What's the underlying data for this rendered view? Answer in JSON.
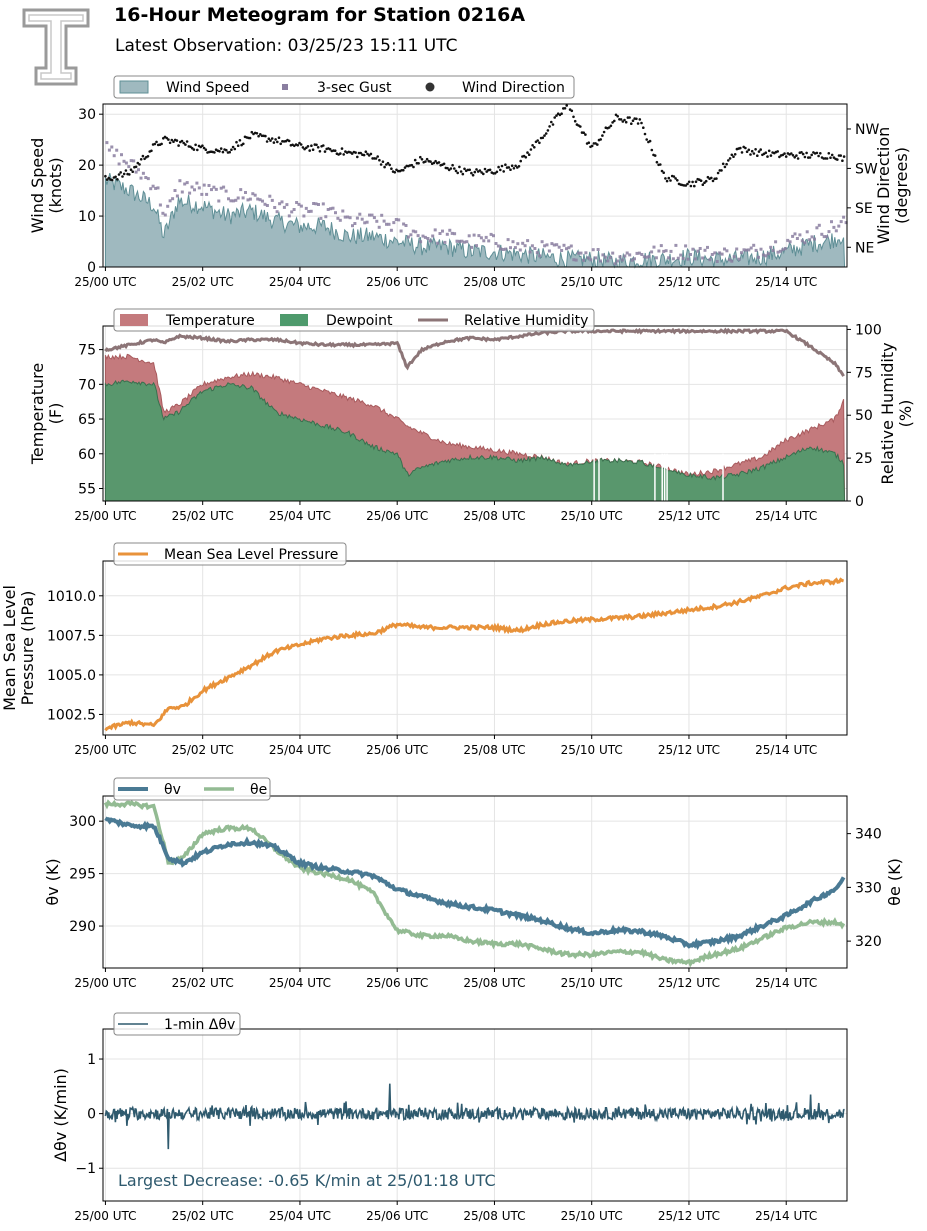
{
  "header": {
    "title": "16-Hour Meteogram for Station 0216A",
    "subtitle": "Latest Observation: 03/25/23 15:11 UTC",
    "logo_text": "T"
  },
  "colors": {
    "wind_fill": "#9fb9bf",
    "wind_line": "#5f8f96",
    "gust": "#8a7ea0",
    "direction": "#111111",
    "temperature": "#c47a7d",
    "dewpoint": "#4e9a6c",
    "rh": "#8c7577",
    "pressure": "#e8923a",
    "theta_v": "#4a7a94",
    "theta_e": "#93bb93",
    "dtheta": "#2f5a6e",
    "annotation": "#2f5a6e"
  },
  "chart_data": [
    {
      "id": "wind",
      "type": "area",
      "xlabel": "",
      "ylabel": "Wind Speed\n(knots)",
      "ylabel_right": "Wind Direction\n(degrees)",
      "ylim": [
        0,
        32
      ],
      "yticks": [
        0,
        10,
        20,
        30
      ],
      "ylim_right": [
        0,
        372
      ],
      "yticks_right": [
        45,
        135,
        225,
        315
      ],
      "yticklabels_right": [
        "NE",
        "SE",
        "SW",
        "NW"
      ],
      "x_hours": [
        0,
        0.5,
        1,
        1.2,
        1.5,
        2,
        2.5,
        3,
        3.5,
        4,
        4.5,
        5,
        5.5,
        6,
        6.5,
        7,
        7.5,
        8,
        8.5,
        9,
        9.5,
        10,
        10.5,
        11,
        11.5,
        12,
        12.5,
        13,
        13.5,
        14,
        14.5,
        15,
        15.2
      ],
      "series": [
        {
          "name": "Wind Speed",
          "kind": "area",
          "values": [
            17,
            15,
            12,
            6,
            13,
            12,
            10,
            11,
            9,
            8,
            8,
            6,
            6,
            5,
            4,
            4,
            3,
            3,
            2.5,
            2,
            1.5,
            1.5,
            1,
            1.5,
            1.5,
            2,
            1.5,
            1.5,
            2,
            3,
            4.5,
            5.5,
            6.5
          ]
        },
        {
          "name": "3-sec Gust",
          "kind": "points",
          "values": [
            23,
            20,
            16,
            10,
            16,
            15,
            14,
            14,
            12,
            11,
            11,
            9,
            9,
            8,
            6,
            6,
            5,
            5,
            4,
            3.5,
            3,
            2.5,
            2,
            2.5,
            3,
            3,
            2.5,
            2.5,
            3.5,
            5,
            6.5,
            8,
            9
          ]
        },
        {
          "name": "Wind Direction",
          "kind": "points",
          "values": [
            200,
            215,
            275,
            290,
            285,
            270,
            265,
            300,
            290,
            275,
            270,
            260,
            255,
            215,
            245,
            230,
            215,
            220,
            235,
            300,
            370,
            270,
            340,
            330,
            205,
            190,
            200,
            270,
            260,
            255,
            255,
            255,
            245
          ]
        }
      ],
      "legend": [
        "Wind Speed",
        "3-sec Gust",
        "Wind Direction"
      ]
    },
    {
      "id": "thermo",
      "type": "area",
      "ylabel": "Temperature\n(F)",
      "ylabel_right": "Relative Humidity\n(%)",
      "ylim": [
        53.2,
        78.4
      ],
      "yticks": [
        55,
        60,
        65,
        70,
        75
      ],
      "ylim_right": [
        0,
        102
      ],
      "yticks_right": [
        0,
        25,
        50,
        75,
        100
      ],
      "x_hours": [
        0,
        0.5,
        1,
        1.2,
        1.5,
        2,
        2.5,
        3,
        3.5,
        4,
        4.5,
        5,
        5.5,
        6,
        6.2,
        6.5,
        7,
        7.5,
        8,
        8.5,
        9,
        9.5,
        10,
        10.5,
        11,
        11.5,
        12,
        12.5,
        13,
        13.5,
        14,
        14.5,
        15,
        15.2
      ],
      "series": [
        {
          "name": "Temperature",
          "kind": "area",
          "values": [
            74,
            74,
            73,
            66,
            67,
            70,
            71,
            71.5,
            71,
            70,
            69,
            68,
            67,
            65,
            64,
            63,
            61.5,
            61,
            60.5,
            60,
            59.5,
            58.5,
            59,
            59,
            58.8,
            58,
            57,
            57.5,
            58.5,
            59.5,
            62,
            63.5,
            65,
            68
          ]
        },
        {
          "name": "Dewpoint",
          "kind": "area",
          "values": [
            70,
            70.5,
            70,
            65,
            66,
            69,
            70,
            69.5,
            66,
            65,
            64,
            63,
            61,
            60,
            57,
            58,
            59,
            59.5,
            59.5,
            59,
            59.5,
            58.5,
            59,
            59.5,
            58.8,
            58,
            57,
            56.5,
            57,
            58,
            59.5,
            61,
            60,
            58.5
          ]
        },
        {
          "name": "Relative Humidity",
          "kind": "line",
          "values": [
            88,
            91,
            94,
            92,
            96,
            95,
            93,
            94,
            94,
            92,
            91,
            91,
            91,
            92,
            78,
            88,
            93,
            95,
            94,
            96,
            98,
            99,
            99,
            99,
            99,
            99,
            99,
            99,
            99,
            99,
            99,
            90,
            80,
            72
          ]
        }
      ],
      "legend": [
        "Temperature",
        "Dewpoint",
        "Relative Humidity"
      ]
    },
    {
      "id": "pressure",
      "type": "line",
      "ylabel": "Mean Sea Level\nPressure (hPa)",
      "ylim": [
        1001.2,
        1012.2
      ],
      "yticks": [
        1002.5,
        1005.0,
        1007.5,
        1010.0
      ],
      "yticklabels": [
        "1002.5",
        "1005.0",
        "1007.5",
        "1010.0"
      ],
      "x_hours": [
        0,
        0.5,
        1,
        1.3,
        1.6,
        2,
        2.5,
        3,
        3.5,
        4,
        4.5,
        5,
        5.5,
        6,
        6.5,
        7,
        7.5,
        8,
        8.5,
        9,
        9.5,
        10,
        10.5,
        11,
        11.5,
        12,
        12.5,
        13,
        13.5,
        14,
        14.5,
        15,
        15.2
      ],
      "series": [
        {
          "name": "Mean Sea Level Pressure",
          "values": [
            1001.6,
            1002.0,
            1001.8,
            1002.9,
            1003.0,
            1004.0,
            1004.8,
            1005.6,
            1006.5,
            1006.9,
            1007.3,
            1007.5,
            1007.6,
            1008.2,
            1008.0,
            1008.0,
            1008.0,
            1008.0,
            1007.8,
            1008.2,
            1008.4,
            1008.5,
            1008.6,
            1008.7,
            1008.9,
            1009.1,
            1009.3,
            1009.6,
            1010.0,
            1010.5,
            1010.8,
            1010.9,
            1011.0
          ]
        }
      ],
      "legend": [
        "Mean Sea Level Pressure"
      ]
    },
    {
      "id": "theta",
      "type": "line",
      "ylabel": "θv (K)",
      "ylabel_right": "θe (K)",
      "ylim": [
        286,
        302.4
      ],
      "yticks": [
        290,
        295,
        300
      ],
      "ylim_right": [
        315,
        347
      ],
      "yticks_right": [
        320,
        330,
        340
      ],
      "x_hours": [
        0,
        0.5,
        1,
        1.3,
        1.6,
        2,
        2.5,
        3,
        3.5,
        4,
        4.5,
        5,
        5.5,
        6,
        6.5,
        7,
        7.5,
        8,
        8.5,
        9,
        9.5,
        10,
        10.5,
        11,
        11.5,
        12,
        12.5,
        13,
        13.5,
        14,
        14.5,
        15,
        15.2
      ],
      "series": [
        {
          "name": "θv",
          "axis": "left",
          "values": [
            300.2,
            299.6,
            299.5,
            296.5,
            296,
            297,
            297.8,
            298.0,
            297.5,
            296,
            295.5,
            295.2,
            294.8,
            293.5,
            292.8,
            292.2,
            291.8,
            291.5,
            291.0,
            290.5,
            289.8,
            289.3,
            289.6,
            289.5,
            289.0,
            288.2,
            288.5,
            289.0,
            290.0,
            291.0,
            292.3,
            293.5,
            294.6
          ]
        },
        {
          "name": "θe",
          "axis": "right",
          "values": [
            345.5,
            345.5,
            345,
            334.5,
            335.5,
            340,
            341,
            341,
            337,
            333.5,
            332.5,
            331.5,
            329,
            322,
            321,
            321,
            320,
            319.5,
            319.5,
            318.5,
            317.5,
            317.5,
            318,
            318,
            316.5,
            316,
            317.5,
            318.5,
            320.5,
            322.5,
            323.5,
            323.5,
            323
          ]
        }
      ],
      "legend": [
        "θv",
        "θe"
      ]
    },
    {
      "id": "dtheta",
      "type": "line",
      "ylabel": "Δθv (K/min)",
      "ylim": [
        -1.6,
        1.55
      ],
      "yticks": [
        -1,
        0,
        1
      ],
      "yticklabels": [
        "−1",
        "0",
        "1"
      ],
      "annotation": "Largest Decrease: -0.65 K/min at 25/01:18 UTC",
      "spikes": [
        {
          "x": 1.3,
          "y": -0.65
        },
        {
          "x": 5.85,
          "y": 0.55
        },
        {
          "x": 14.5,
          "y": 0.35
        }
      ],
      "series": [
        {
          "name": "1-min Δθv",
          "values": []
        }
      ],
      "legend": [
        "1-min Δθv"
      ]
    }
  ],
  "xaxis": {
    "range_hours": [
      -0.05,
      15.25
    ],
    "ticks_hours": [
      0,
      2,
      4,
      6,
      8,
      10,
      12,
      14
    ],
    "ticklabels": [
      "25/00 UTC",
      "25/02 UTC",
      "25/04 UTC",
      "25/06 UTC",
      "25/08 UTC",
      "25/10 UTC",
      "25/12 UTC",
      "25/14 UTC"
    ]
  }
}
